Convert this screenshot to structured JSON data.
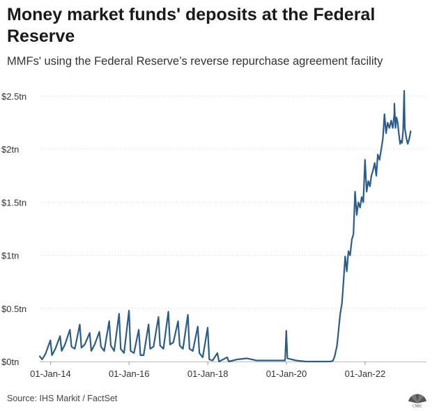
{
  "chart_data": {
    "type": "line",
    "title": "Money market funds' deposits at the Federal Reserve",
    "subtitle": "MMFs' using the Federal Reserve’s reverse repurchase agreement facility",
    "source": "Source: IHS Markit / FactSet",
    "logo": "CNBC",
    "ylabel": "",
    "xlabel": "",
    "ylim": [
      0,
      2.5
    ],
    "y_unit": "trillion US$",
    "y_ticks": [
      {
        "value": 0,
        "label": "$0tn"
      },
      {
        "value": 0.5,
        "label": "$0.5tn"
      },
      {
        "value": 1,
        "label": "$1tn"
      },
      {
        "value": 1.5,
        "label": "$1.5tn"
      },
      {
        "value": 2,
        "label": "$2tn"
      },
      {
        "value": 2.5,
        "label": "$2.5tn"
      }
    ],
    "x_range": [
      "2013-09-23",
      "2022-12-30"
    ],
    "x_ticks": [
      {
        "value": "2014-01-01",
        "label": "01-Jan-14"
      },
      {
        "value": "2016-01-01",
        "label": "01-Jan-16"
      },
      {
        "value": "2018-01-01",
        "label": "01-Jan-18"
      },
      {
        "value": "2020-01-01",
        "label": "01-Jan-20"
      },
      {
        "value": "2022-01-01",
        "label": "01-Jan-22"
      }
    ],
    "grid": "horizontal dotted",
    "line_color": "#2b5c8a",
    "series": [
      {
        "name": "",
        "points": [
          [
            "2013-09-23",
            0.05
          ],
          [
            "2013-10-15",
            0.02
          ],
          [
            "2013-11-15",
            0.07
          ],
          [
            "2013-12-31",
            0.2
          ],
          [
            "2014-01-15",
            0.06
          ],
          [
            "2014-02-15",
            0.12
          ],
          [
            "2014-03-31",
            0.24
          ],
          [
            "2014-04-15",
            0.1
          ],
          [
            "2014-05-15",
            0.16
          ],
          [
            "2014-06-30",
            0.3
          ],
          [
            "2014-07-15",
            0.14
          ],
          [
            "2014-08-15",
            0.12
          ],
          [
            "2014-09-30",
            0.35
          ],
          [
            "2014-10-15",
            0.13
          ],
          [
            "2014-11-15",
            0.16
          ],
          [
            "2014-12-31",
            0.27
          ],
          [
            "2015-01-15",
            0.1
          ],
          [
            "2015-02-15",
            0.16
          ],
          [
            "2015-03-31",
            0.28
          ],
          [
            "2015-04-15",
            0.14
          ],
          [
            "2015-05-15",
            0.1
          ],
          [
            "2015-06-30",
            0.38
          ],
          [
            "2015-07-15",
            0.15
          ],
          [
            "2015-08-15",
            0.1
          ],
          [
            "2015-09-30",
            0.45
          ],
          [
            "2015-10-15",
            0.12
          ],
          [
            "2015-11-15",
            0.08
          ],
          [
            "2015-12-31",
            0.48
          ],
          [
            "2016-01-15",
            0.1
          ],
          [
            "2016-02-15",
            0.08
          ],
          [
            "2016-03-31",
            0.3
          ],
          [
            "2016-04-15",
            0.06
          ],
          [
            "2016-05-15",
            0.06
          ],
          [
            "2016-06-30",
            0.35
          ],
          [
            "2016-07-15",
            0.12
          ],
          [
            "2016-08-15",
            0.14
          ],
          [
            "2016-09-30",
            0.42
          ],
          [
            "2016-10-15",
            0.15
          ],
          [
            "2016-11-15",
            0.12
          ],
          [
            "2016-12-31",
            0.47
          ],
          [
            "2017-01-15",
            0.16
          ],
          [
            "2017-02-15",
            0.18
          ],
          [
            "2017-03-31",
            0.38
          ],
          [
            "2017-04-15",
            0.15
          ],
          [
            "2017-05-15",
            0.12
          ],
          [
            "2017-06-30",
            0.44
          ],
          [
            "2017-07-15",
            0.12
          ],
          [
            "2017-08-15",
            0.1
          ],
          [
            "2017-09-30",
            0.33
          ],
          [
            "2017-10-15",
            0.08
          ],
          [
            "2017-11-15",
            0.04
          ],
          [
            "2017-12-31",
            0.32
          ],
          [
            "2018-01-15",
            0.02
          ],
          [
            "2018-02-15",
            0.01
          ],
          [
            "2018-03-31",
            0.08
          ],
          [
            "2018-04-15",
            0.0
          ],
          [
            "2018-06-30",
            0.04
          ],
          [
            "2018-07-15",
            0.0
          ],
          [
            "2018-09-30",
            0.02
          ],
          [
            "2018-12-31",
            0.03
          ],
          [
            "2019-03-31",
            0.01
          ],
          [
            "2019-06-30",
            0.01
          ],
          [
            "2019-09-30",
            0.01
          ],
          [
            "2019-12-20",
            0.01
          ],
          [
            "2019-12-31",
            0.29
          ],
          [
            "2020-01-10",
            0.03
          ],
          [
            "2020-03-31",
            0.01
          ],
          [
            "2020-06-30",
            0.0
          ],
          [
            "2020-12-31",
            0.0
          ],
          [
            "2021-02-15",
            0.0
          ],
          [
            "2021-03-10",
            0.01
          ],
          [
            "2021-03-25",
            0.05
          ],
          [
            "2021-04-15",
            0.15
          ],
          [
            "2021-04-30",
            0.3
          ],
          [
            "2021-05-15",
            0.45
          ],
          [
            "2021-05-31",
            0.55
          ],
          [
            "2021-06-15",
            0.76
          ],
          [
            "2021-06-30",
            0.99
          ],
          [
            "2021-07-15",
            0.85
          ],
          [
            "2021-07-30",
            1.04
          ],
          [
            "2021-08-15",
            1.0
          ],
          [
            "2021-08-31",
            1.15
          ],
          [
            "2021-09-15",
            1.2
          ],
          [
            "2021-09-30",
            1.6
          ],
          [
            "2021-10-15",
            1.38
          ],
          [
            "2021-10-31",
            1.5
          ],
          [
            "2021-11-15",
            1.45
          ],
          [
            "2021-11-30",
            1.55
          ],
          [
            "2021-12-15",
            1.5
          ],
          [
            "2021-12-31",
            1.9
          ],
          [
            "2022-01-15",
            1.6
          ],
          [
            "2022-01-31",
            1.7
          ],
          [
            "2022-02-15",
            1.65
          ],
          [
            "2022-02-28",
            1.75
          ],
          [
            "2022-03-15",
            1.8
          ],
          [
            "2022-03-31",
            1.87
          ],
          [
            "2022-04-15",
            1.75
          ],
          [
            "2022-04-29",
            1.95
          ],
          [
            "2022-05-15",
            1.9
          ],
          [
            "2022-05-31",
            2.0
          ],
          [
            "2022-06-15",
            2.1
          ],
          [
            "2022-06-30",
            2.33
          ],
          [
            "2022-07-15",
            2.15
          ],
          [
            "2022-07-29",
            2.25
          ],
          [
            "2022-08-15",
            2.2
          ],
          [
            "2022-08-31",
            2.27
          ],
          [
            "2022-09-15",
            2.2
          ],
          [
            "2022-09-29",
            2.33
          ],
          [
            "2022-09-30",
            2.43
          ],
          [
            "2022-10-10",
            2.2
          ],
          [
            "2022-10-20",
            2.3
          ],
          [
            "2022-10-31",
            2.25
          ],
          [
            "2022-11-10",
            2.15
          ],
          [
            "2022-11-22",
            2.05
          ],
          [
            "2022-12-01",
            2.08
          ],
          [
            "2022-12-10",
            2.06
          ],
          [
            "2022-12-20",
            2.18
          ],
          [
            "2022-12-30",
            2.55
          ],
          [
            "2023-01-05",
            2.2
          ],
          [
            "2023-01-20",
            2.1
          ],
          [
            "2023-02-01",
            2.05
          ],
          [
            "2023-02-15",
            2.1
          ],
          [
            "2023-02-28",
            2.17
          ]
        ]
      }
    ]
  }
}
